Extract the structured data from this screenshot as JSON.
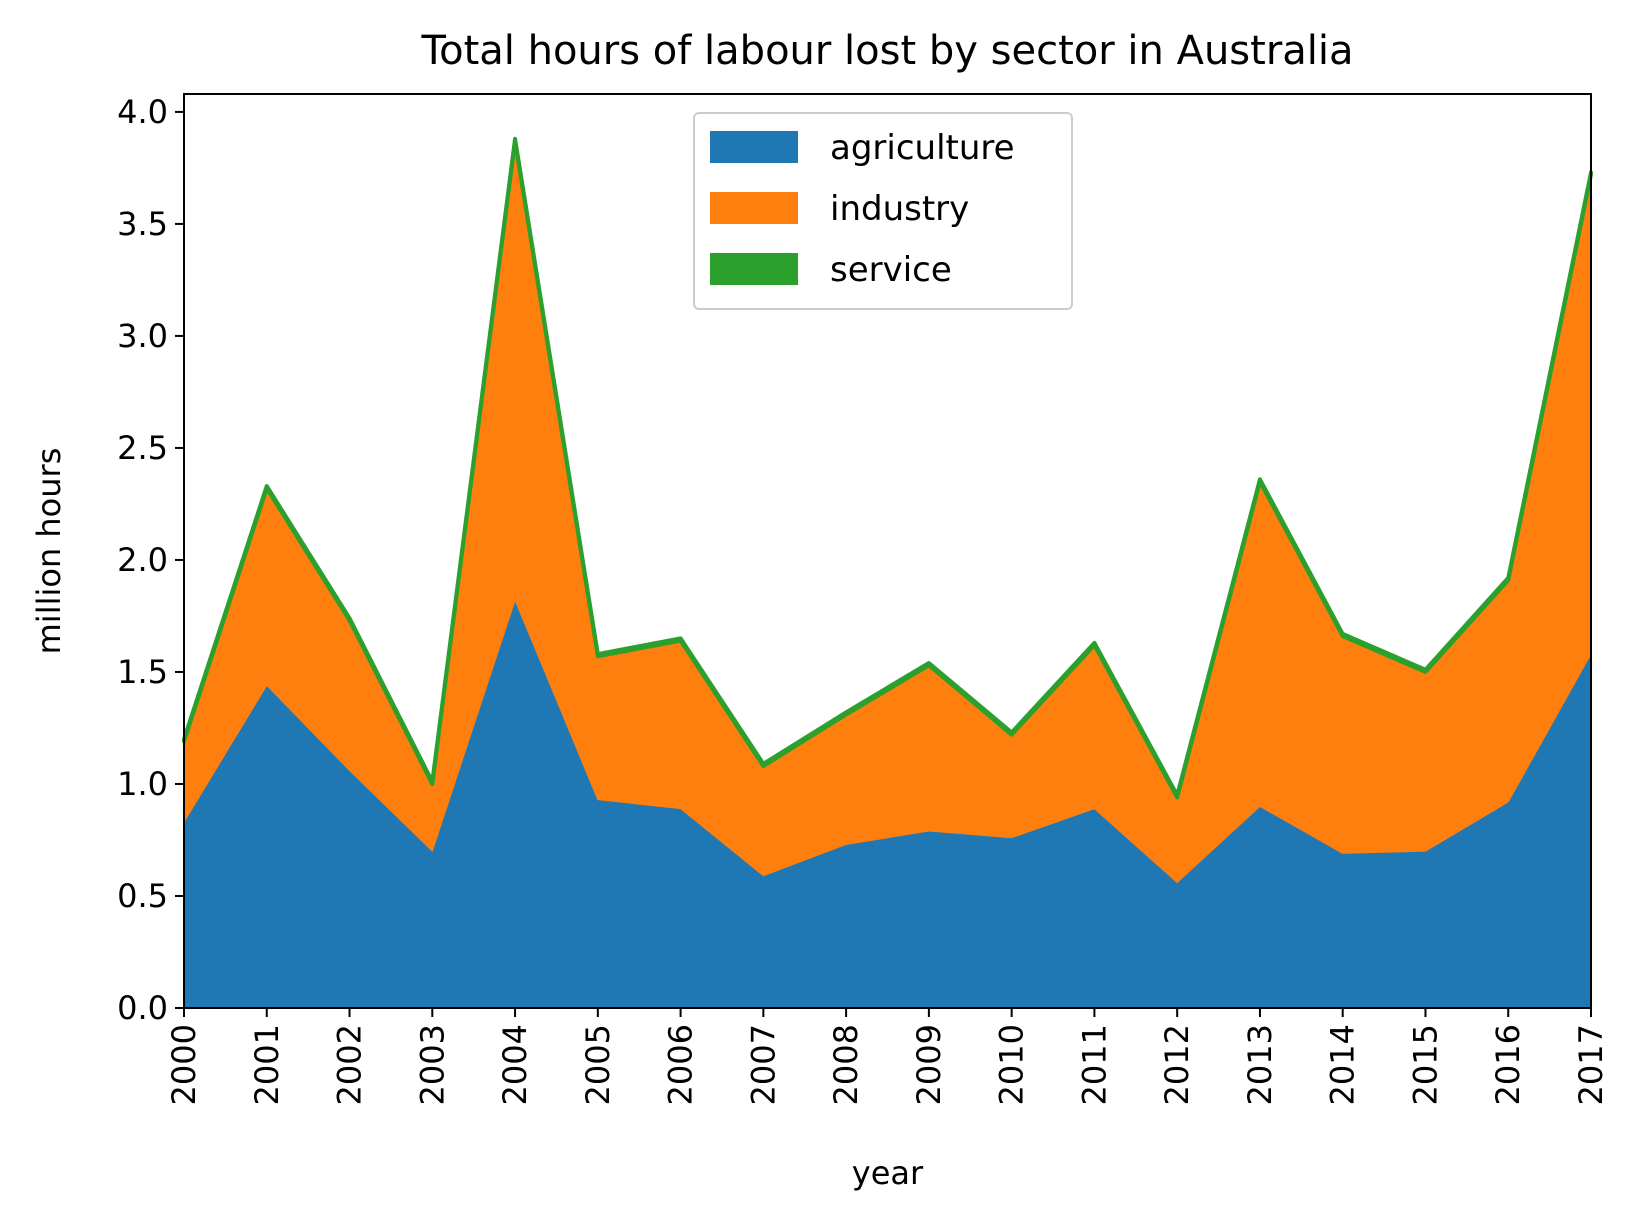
{
  "chart_data": {
    "type": "area",
    "title": "Total hours of labour lost by sector in Australia",
    "xlabel": "year",
    "ylabel": "million hours",
    "categories": [
      "2000",
      "2001",
      "2002",
      "2003",
      "2004",
      "2005",
      "2006",
      "2007",
      "2008",
      "2009",
      "2010",
      "2011",
      "2012",
      "2013",
      "2014",
      "2015",
      "2016",
      "2017"
    ],
    "ylim": [
      0,
      4.08
    ],
    "yticks": [
      "0.0",
      "0.5",
      "1.0",
      "1.5",
      "2.0",
      "2.5",
      "3.0",
      "3.5",
      "4.0"
    ],
    "stacked": true,
    "grid": false,
    "legend_position": "top-center",
    "series": [
      {
        "name": "agriculture",
        "color": "#1f77b4",
        "values": [
          0.83,
          1.44,
          1.06,
          0.7,
          1.82,
          0.93,
          0.89,
          0.59,
          0.73,
          0.79,
          0.76,
          0.89,
          0.56,
          0.9,
          0.69,
          0.7,
          0.92,
          1.58
        ]
      },
      {
        "name": "industry",
        "color": "#ff7f0e",
        "values": [
          0.36,
          0.88,
          0.67,
          0.3,
          2.05,
          0.64,
          0.75,
          0.49,
          0.58,
          0.74,
          0.46,
          0.73,
          0.38,
          1.45,
          0.97,
          0.8,
          0.99,
          2.14
        ]
      },
      {
        "name": "service",
        "color": "#2ca02c",
        "values": [
          0.01,
          0.01,
          0.01,
          0.01,
          0.01,
          0.01,
          0.01,
          0.01,
          0.01,
          0.01,
          0.01,
          0.01,
          0.01,
          0.01,
          0.01,
          0.01,
          0.01,
          0.01
        ]
      }
    ]
  }
}
